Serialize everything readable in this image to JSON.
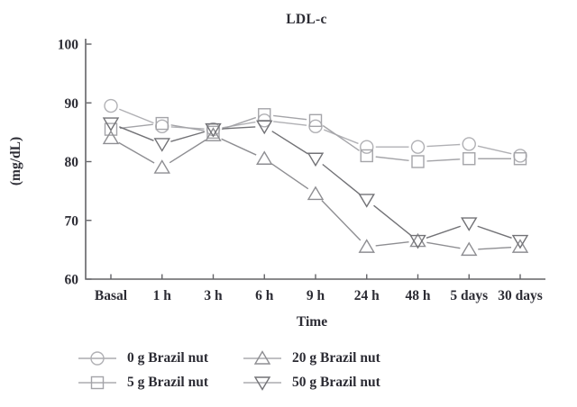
{
  "figure": {
    "title": "LDL-c",
    "x_axis_label": "Time",
    "y_axis_label": "(mg/dL)"
  },
  "colors": {
    "background": "#ffffff",
    "axis": "#636367",
    "text": "#2c2c34",
    "legend_line": "#ababaf"
  },
  "chart_data": {
    "type": "line",
    "title": "LDL-c",
    "xlabel": "Time",
    "ylabel": "(mg/dL)",
    "ylim": [
      60,
      100
    ],
    "yticks": [
      60,
      70,
      80,
      90,
      100
    ],
    "grid": false,
    "legend_position": "bottom",
    "categories": [
      "Basal",
      "1 h",
      "3 h",
      "6 h",
      "9 h",
      "24 h",
      "48 h",
      "5 days",
      "30 days"
    ],
    "series": [
      {
        "name": "0 g Brazil nut",
        "marker": "circle",
        "color": "#b0b0b4",
        "values": [
          89.5,
          86.0,
          85.5,
          87.0,
          86.0,
          82.5,
          82.5,
          83.0,
          81.0
        ]
      },
      {
        "name": "5 g Brazil nut",
        "marker": "square",
        "color": "#a4a4a8",
        "values": [
          85.5,
          86.5,
          85.0,
          88.0,
          87.0,
          81.0,
          80.0,
          80.5,
          80.5
        ]
      },
      {
        "name": "20 g Brazil nut",
        "marker": "triangle-up",
        "color": "#8e8e92",
        "values": [
          84.0,
          79.0,
          84.5,
          80.5,
          74.5,
          65.5,
          66.5,
          65.0,
          65.5
        ]
      },
      {
        "name": "50 g Brazil nut",
        "marker": "triangle-down",
        "color": "#727276",
        "values": [
          86.5,
          83.0,
          85.5,
          86.0,
          80.5,
          73.5,
          66.5,
          69.5,
          66.5
        ]
      }
    ]
  }
}
